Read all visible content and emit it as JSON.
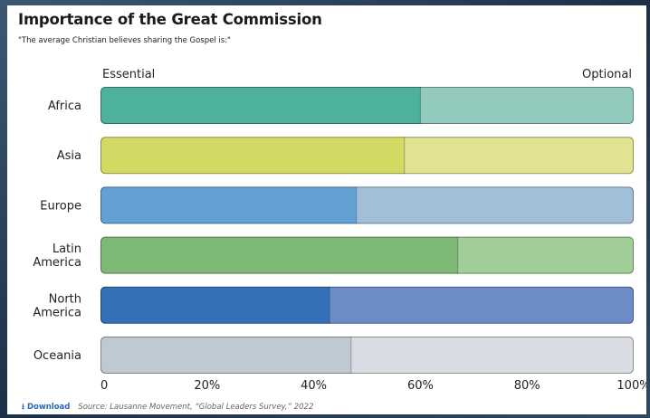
{
  "title": "Importance of the Great Commission",
  "subtitle": "\"The average Christian believes sharing the Gospel is:\"",
  "footer": {
    "download_label": "Download",
    "source": "Source: Lausanne Movement, “Global Leaders Survey,” 2022"
  },
  "chart_data": {
    "type": "bar",
    "orientation": "horizontal",
    "stacked": true,
    "title": "Importance of the Great Commission",
    "subtitle": "\"The average Christian believes sharing the Gospel is:\"",
    "scale_left_label": "Essential",
    "scale_right_label": "Optional",
    "categories": [
      "Africa",
      "Asia",
      "Europe",
      "Latin\nAmerica",
      "North\nAmerica",
      "Oceania"
    ],
    "series": [
      {
        "role": "essential",
        "values": [
          60,
          57,
          48,
          67,
          43,
          47
        ]
      },
      {
        "role": "optional",
        "values": [
          40,
          43,
          52,
          33,
          57,
          53
        ]
      }
    ],
    "colors": {
      "essential": [
        "#4db19e",
        "#d4d964",
        "#63a1d5",
        "#7dba76",
        "#3370b5",
        "#bfc9d2"
      ],
      "optional": [
        "#92cbbd",
        "#e1e393",
        "#a2bfda",
        "#a1cd98",
        "#6b8cc7",
        "#d9dce2"
      ]
    },
    "xlim": [
      0,
      100
    ],
    "xticks": [
      0,
      20,
      40,
      60,
      80,
      100
    ],
    "xtick_labels": [
      "0",
      "20%",
      "40%",
      "60%",
      "80%",
      "100%"
    ],
    "grid": false,
    "legend": "none"
  }
}
